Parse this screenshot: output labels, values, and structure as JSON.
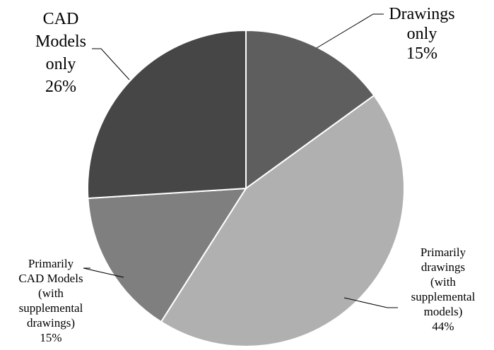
{
  "chart_data": {
    "type": "pie",
    "slices": [
      {
        "key": "drawings-only",
        "label_lines": [
          "Drawings",
          "only",
          "15%"
        ],
        "value": 15,
        "color": "#5e5e5e"
      },
      {
        "key": "primarily-drawings",
        "label_lines": [
          "Primarily",
          "drawings",
          "(with",
          "supplemental",
          "models)",
          "44%"
        ],
        "value": 44,
        "color": "#b0b0b0"
      },
      {
        "key": "primarily-cad-models",
        "label_lines": [
          "Primarily",
          "CAD Models",
          "(with",
          "supplemental",
          "drawings)",
          "15%"
        ],
        "value": 15,
        "color": "#7f7f7f"
      },
      {
        "key": "cad-models-only",
        "label_lines": [
          "CAD",
          "Models",
          "only",
          "26%"
        ],
        "value": 26,
        "color": "#464646"
      }
    ],
    "start_angle": "12 o'clock",
    "direction": "clockwise",
    "legend": "none"
  }
}
